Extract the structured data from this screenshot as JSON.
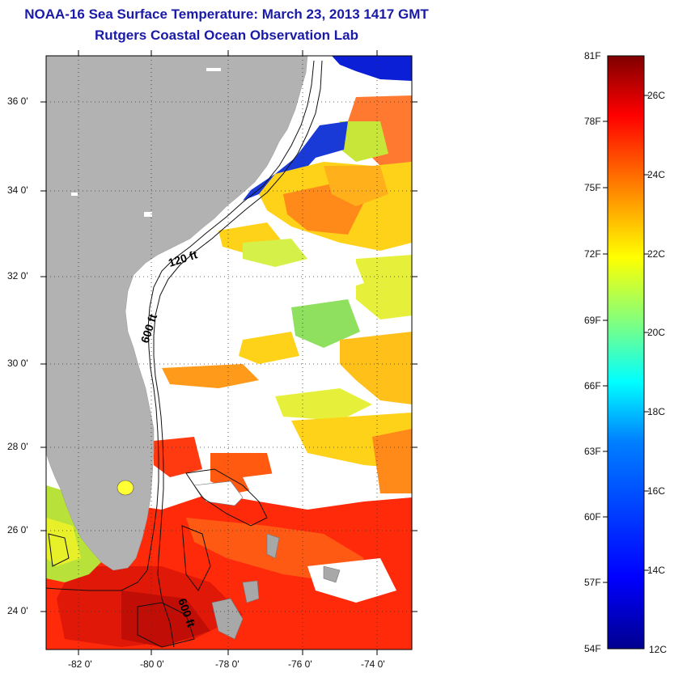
{
  "title": "NOAA-16 Sea Surface Temperature:  March 23, 2013 1417 GMT",
  "subtitle": "Rutgers Coastal Ocean Observation Lab",
  "map": {
    "lat_labels": [
      "36 0'",
      "34 0'",
      "32 0'",
      "30 0'",
      "28 0'",
      "26 0'",
      "24 0'"
    ],
    "lon_labels": [
      "-82 0'",
      "-80 0'",
      "-78 0'",
      "-76 0'",
      "-74 0'"
    ],
    "contour_labels": [
      "120 ft",
      "600 ft",
      "600 ft"
    ],
    "land_color": "#b2b2b2",
    "no_data_color": "#ffffff"
  },
  "colorbar": {
    "fahrenheit_labels": [
      "81F",
      "78F",
      "75F",
      "72F",
      "69F",
      "66F",
      "63F",
      "60F",
      "57F",
      "54F"
    ],
    "celsius_labels": [
      "26C",
      "24C",
      "22C",
      "20C",
      "18C",
      "16C",
      "14C",
      "12C"
    ],
    "colors": [
      "#7f0000",
      "#ff0000",
      "#ff8000",
      "#ffff00",
      "#80ff80",
      "#00ffff",
      "#0080ff",
      "#0000ff",
      "#00008f"
    ]
  }
}
